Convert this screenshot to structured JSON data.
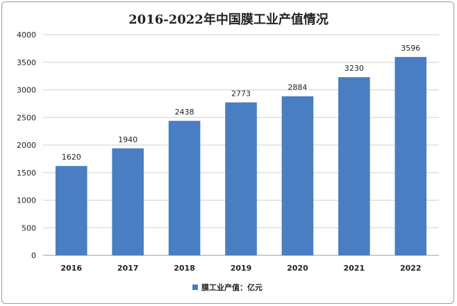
{
  "chart_data": {
    "type": "bar",
    "title": "2016-2022年中国膜工业产值情况",
    "categories": [
      "2016",
      "2017",
      "2018",
      "2019",
      "2020",
      "2021",
      "2022"
    ],
    "series": [
      {
        "name": "膜工业产值：亿元",
        "values": [
          1620,
          1940,
          2438,
          2773,
          2884,
          3230,
          3596
        ],
        "color": "#4a7ec2"
      }
    ],
    "ylim": [
      0,
      4000
    ],
    "yticks": [
      0,
      500,
      1000,
      1500,
      2000,
      2500,
      3000,
      3500,
      4000
    ],
    "grid": true,
    "legend_position": "bottom-center",
    "data_labels": true
  }
}
